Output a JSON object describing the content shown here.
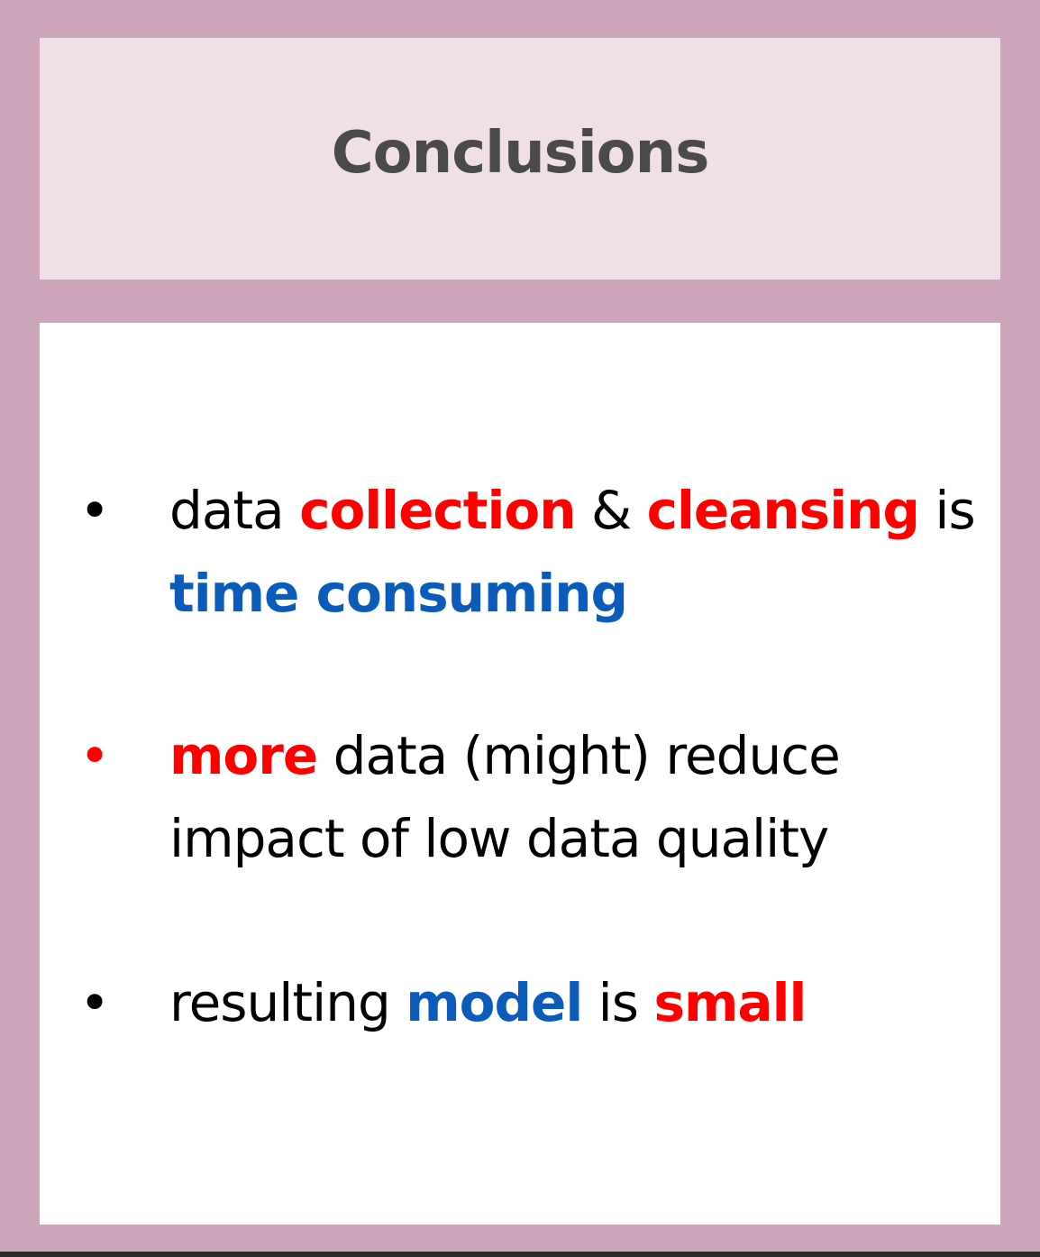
{
  "title": "Conclusions",
  "colors": {
    "frame": "#cda6bc",
    "header_bg": "#f0dfe6",
    "title_text": "#4a4a4a",
    "emphasis_red": "#ff0000",
    "emphasis_blue": "#0b5cba"
  },
  "bullets": [
    {
      "marker": "•",
      "segments": [
        {
          "text": "data "
        },
        {
          "text": "collection"
        },
        {
          "text": " & "
        },
        {
          "text": "cleansing"
        },
        {
          "text": " is "
        },
        {
          "text": "time consuming"
        }
      ]
    },
    {
      "marker": "•",
      "segments": [
        {
          "text": "more"
        },
        {
          "text": " data (might) reduce impact of low data quality"
        }
      ]
    },
    {
      "marker": "•",
      "segments": [
        {
          "text": "resulting "
        },
        {
          "text": "model"
        },
        {
          "text": " is "
        },
        {
          "text": "small"
        }
      ]
    }
  ]
}
